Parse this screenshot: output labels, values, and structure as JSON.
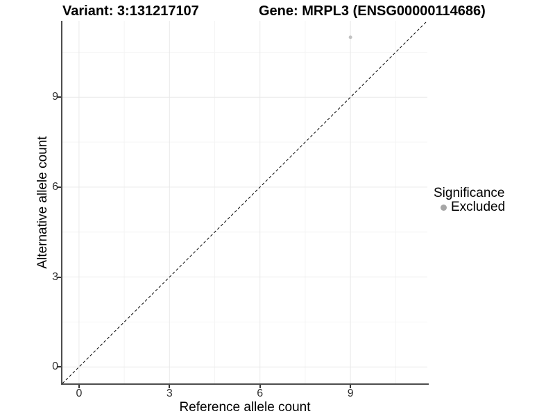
{
  "chart_data": {
    "type": "scatter",
    "title": "Variant: 3:131217107    Gene: MRPL3 (ENSG00000114686)",
    "title_parts": {
      "left": "Variant: 3:131217107",
      "right": "Gene: MRPL3 (ENSG00000114686)"
    },
    "xlabel": "Reference allele count",
    "ylabel": "Alternative allele count",
    "xlim": [
      -0.55,
      11.55
    ],
    "ylim": [
      -0.55,
      11.55
    ],
    "x_ticks": [
      0,
      3,
      6,
      9
    ],
    "y_ticks": [
      0,
      3,
      6,
      9
    ],
    "x_minor_ticks": [
      1.5,
      4.5,
      7.5,
      10.5
    ],
    "y_minor_ticks": [
      1.5,
      4.5,
      7.5,
      10.5
    ],
    "grid": true,
    "legend_position": "right",
    "series": [
      {
        "name": "Excluded",
        "color": "#c2c2c2",
        "marker": "circle",
        "points": [
          {
            "x": 9,
            "y": 11
          }
        ]
      }
    ],
    "reference_line": {
      "type": "identity",
      "style": "dashed",
      "color": "#000000",
      "x1": -0.55,
      "y1": -0.55,
      "x2": 11.55,
      "y2": 11.55
    },
    "legend": {
      "title": "Significance",
      "entries": [
        {
          "label": "Excluded",
          "marker_color": "#a6a6a6"
        }
      ]
    }
  },
  "colors": {
    "background": "#ffffff",
    "axis_line": "#4d4d4d",
    "tick_mark": "#333333",
    "tick_label": "#303030",
    "grid_major": "#e9e9e9",
    "grid_minor": "#f4f4f4",
    "title_text": "#000000"
  }
}
